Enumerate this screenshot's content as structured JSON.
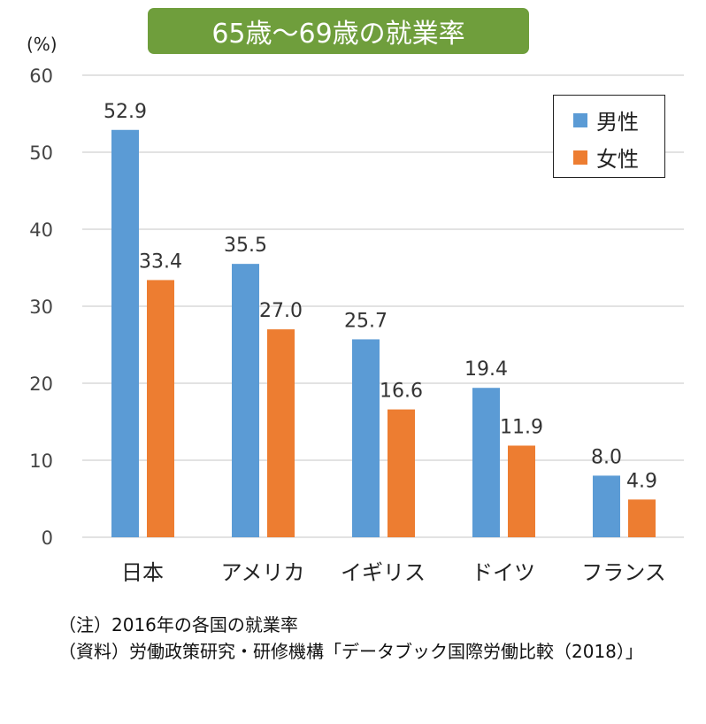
{
  "chart_data": {
    "type": "bar",
    "title": "65歳〜69歳の就業率",
    "ylabel": "(%)",
    "ylim": [
      0,
      60
    ],
    "yticks": [
      0,
      10,
      20,
      30,
      40,
      50,
      60
    ],
    "grid": true,
    "legend_position": "top-right",
    "categories": [
      "日本",
      "アメリカ",
      "イギリス",
      "ドイツ",
      "フランス"
    ],
    "series": [
      {
        "name": "男性",
        "color": "#5b9bd5",
        "values": [
          52.9,
          35.5,
          25.7,
          19.4,
          8.0
        ]
      },
      {
        "name": "女性",
        "color": "#ed7d31",
        "values": [
          33.4,
          27.0,
          16.6,
          11.9,
          4.9
        ]
      }
    ]
  },
  "notes": [
    "（注）2016年の各国の就業率",
    "（資料）労働政策研究・研修機構「データブック国際労働比較（2018）」"
  ]
}
